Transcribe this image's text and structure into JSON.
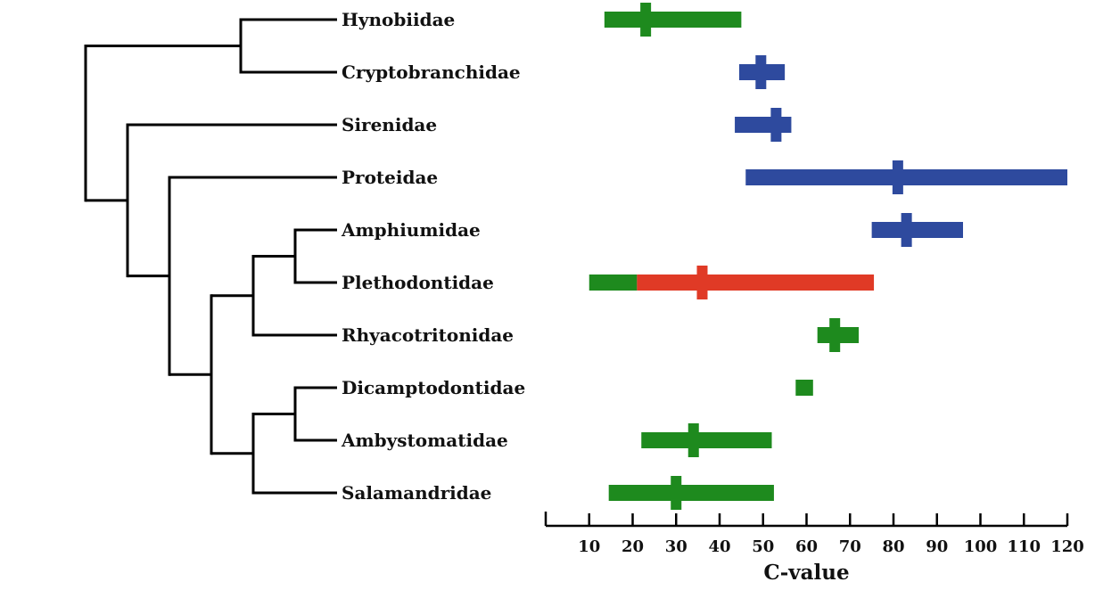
{
  "chart_data": {
    "type": "range",
    "xlabel": "C-value",
    "xlim": [
      0,
      120
    ],
    "ticks": [
      10,
      20,
      30,
      40,
      50,
      60,
      70,
      80,
      90,
      100,
      110,
      120
    ],
    "colors": {
      "green": "#1e8a1e",
      "blue": "#2e4a9e",
      "red": "#e03a26",
      "tree": "#000000"
    },
    "tree": {
      "children": [
        {
          "children": [
            {
              "taxon": 0
            },
            {
              "taxon": 1
            }
          ]
        },
        {
          "children": [
            {
              "taxon": 2
            },
            {
              "children": [
                {
                  "taxon": 3
                },
                {
                  "children": [
                    {
                      "children": [
                        {
                          "children": [
                            {
                              "taxon": 4
                            },
                            {
                              "taxon": 5
                            }
                          ]
                        },
                        {
                          "taxon": 6
                        }
                      ]
                    },
                    {
                      "children": [
                        {
                          "children": [
                            {
                              "taxon": 7
                            },
                            {
                              "taxon": 8
                            }
                          ]
                        },
                        {
                          "taxon": 9
                        }
                      ]
                    }
                  ]
                }
              ]
            }
          ]
        }
      ]
    },
    "taxa": [
      {
        "name": "Hynobiidae",
        "mean": 23,
        "segments": [
          {
            "from": 13.5,
            "to": 45,
            "color": "green"
          }
        ],
        "meanColor": "green"
      },
      {
        "name": "Cryptobranchidae",
        "mean": 49.5,
        "segments": [
          {
            "from": 44.5,
            "to": 55,
            "color": "blue"
          }
        ],
        "meanColor": "blue"
      },
      {
        "name": "Sirenidae",
        "mean": 53,
        "segments": [
          {
            "from": 43.5,
            "to": 56.5,
            "color": "blue"
          }
        ],
        "meanColor": "blue"
      },
      {
        "name": "Proteidae",
        "mean": 81,
        "segments": [
          {
            "from": 46,
            "to": 120,
            "color": "blue"
          }
        ],
        "meanColor": "blue"
      },
      {
        "name": "Amphiumidae",
        "mean": 83,
        "segments": [
          {
            "from": 75,
            "to": 96,
            "color": "blue"
          }
        ],
        "meanColor": "blue"
      },
      {
        "name": "Plethodontidae",
        "mean": 36,
        "segments": [
          {
            "from": 10,
            "to": 21,
            "color": "green"
          },
          {
            "from": 21,
            "to": 75.5,
            "color": "red"
          }
        ],
        "meanColor": "red"
      },
      {
        "name": "Rhyacotritonidae",
        "mean": 66.5,
        "segments": [
          {
            "from": 62.5,
            "to": 72,
            "color": "green"
          }
        ],
        "meanColor": "green"
      },
      {
        "name": "Dicamptodontidae",
        "mean": null,
        "segments": [
          {
            "from": 57.5,
            "to": 61.5,
            "color": "green"
          }
        ],
        "meanColor": "green"
      },
      {
        "name": "Ambystomatidae",
        "mean": 34,
        "segments": [
          {
            "from": 22,
            "to": 52,
            "color": "green"
          }
        ],
        "meanColor": "green"
      },
      {
        "name": "Salamandridae",
        "mean": 30,
        "segments": [
          {
            "from": 14.5,
            "to": 52.5,
            "color": "green"
          }
        ],
        "meanColor": "green"
      }
    ]
  }
}
